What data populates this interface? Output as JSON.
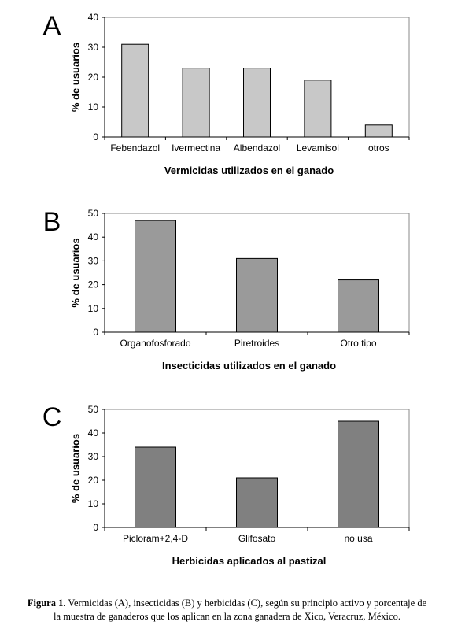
{
  "chart_data": [
    {
      "type": "bar",
      "panel_label": "A",
      "categories": [
        "Febendazol",
        "Ivermectina",
        "Albendazol",
        "Levamisol",
        "otros"
      ],
      "values": [
        31,
        23,
        23,
        19,
        4
      ],
      "xlabel": "Vermicidas utilizados en el ganado",
      "ylabel": "% de usuarios",
      "ylim": [
        0,
        40
      ],
      "yticks": [
        "0",
        "10",
        "20",
        "30",
        "40"
      ],
      "bar_color": "#c8c8c8",
      "grid": false
    },
    {
      "type": "bar",
      "panel_label": "B",
      "categories": [
        "Organofosforado",
        "Piretroides",
        "Otro tipo"
      ],
      "values": [
        47,
        31,
        22
      ],
      "xlabel": "Insecticidas utilizados en el ganado",
      "ylabel": "% de usuarios",
      "ylim": [
        0,
        50
      ],
      "yticks": [
        "0",
        "10",
        "20",
        "30",
        "40",
        "50"
      ],
      "bar_color": "#9a9a9a",
      "grid": false
    },
    {
      "type": "bar",
      "panel_label": "C",
      "categories": [
        "Picloram+2,4-D",
        "Glifosato",
        "no usa"
      ],
      "values": [
        34,
        21,
        45
      ],
      "xlabel": "Herbicidas aplicados al pastizal",
      "ylabel": "% de usuarios",
      "ylim": [
        0,
        50
      ],
      "yticks": [
        "0",
        "10",
        "20",
        "30",
        "40",
        "50"
      ],
      "bar_color": "#808080",
      "grid": false
    }
  ],
  "caption": {
    "lead": "Figura 1.",
    "line1": " Vermicidas (A), insecticidas (B) y  herbicidas (C), según su principio activo y porcentaje de",
    "line2": "la muestra de ganaderos que los aplican en la zona ganadera de Xico, Veracruz, México."
  }
}
